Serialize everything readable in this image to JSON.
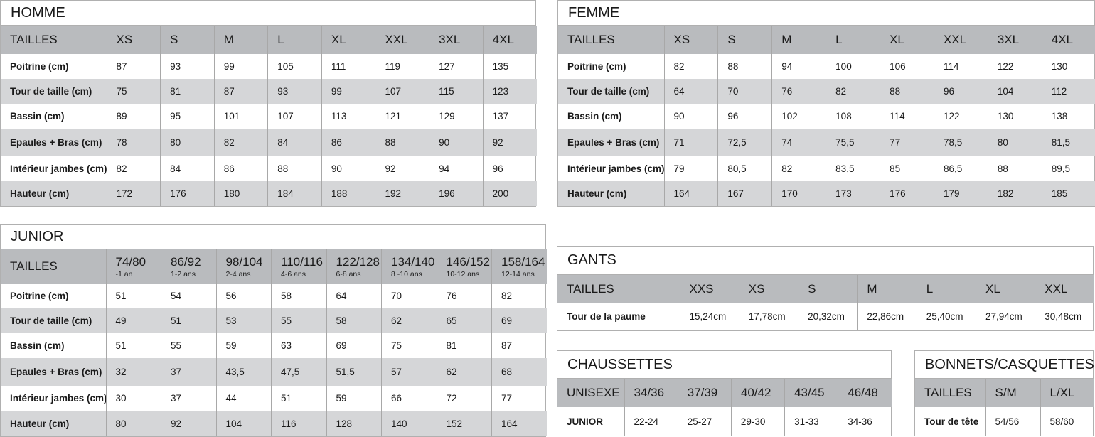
{
  "homme": {
    "title": "HOMME",
    "header": [
      "TAILLES",
      "XS",
      "S",
      "M",
      "L",
      "XL",
      "XXL",
      "3XL",
      "4XL"
    ],
    "rows": [
      [
        "Poitrine (cm)",
        "87",
        "93",
        "99",
        "105",
        "111",
        "119",
        "127",
        "135"
      ],
      [
        "Tour de taille (cm)",
        "75",
        "81",
        "87",
        "93",
        "99",
        "107",
        "115",
        "123"
      ],
      [
        "Bassin (cm)",
        "89",
        "95",
        "101",
        "107",
        "113",
        "121",
        "129",
        "137"
      ],
      [
        "Epaules + Bras (cm)",
        "78",
        "80",
        "82",
        "84",
        "86",
        "88",
        "90",
        "92"
      ],
      [
        "Intérieur jambes (cm)",
        "82",
        "84",
        "86",
        "88",
        "90",
        "92",
        "94",
        "96"
      ],
      [
        "Hauteur (cm)",
        "172",
        "176",
        "180",
        "184",
        "188",
        "192",
        "196",
        "200"
      ]
    ]
  },
  "femme": {
    "title": "FEMME",
    "header": [
      "TAILLES",
      "XS",
      "S",
      "M",
      "L",
      "XL",
      "XXL",
      "3XL",
      "4XL"
    ],
    "rows": [
      [
        "Poitrine (cm)",
        "82",
        "88",
        "94",
        "100",
        "106",
        "114",
        "122",
        "130"
      ],
      [
        "Tour de taille (cm)",
        "64",
        "70",
        "76",
        "82",
        "88",
        "96",
        "104",
        "112"
      ],
      [
        "Bassin (cm)",
        "90",
        "96",
        "102",
        "108",
        "114",
        "122",
        "130",
        "138"
      ],
      [
        "Epaules + Bras (cm)",
        "71",
        "72,5",
        "74",
        "75,5",
        "77",
        "78,5",
        "80",
        "81,5"
      ],
      [
        "Intérieur jambes (cm)",
        "79",
        "80,5",
        "82",
        "83,5",
        "85",
        "86,5",
        "88",
        "89,5"
      ],
      [
        "Hauteur (cm)",
        "164",
        "167",
        "170",
        "173",
        "176",
        "179",
        "182",
        "185"
      ]
    ]
  },
  "junior": {
    "title": "JUNIOR",
    "header": [
      "TAILLES",
      {
        "size": "74/80",
        "sub": "-1 an"
      },
      {
        "size": "86/92",
        "sub": "1-2 ans"
      },
      {
        "size": "98/104",
        "sub": "2-4 ans"
      },
      {
        "size": "110/116",
        "sub": "4-6 ans"
      },
      {
        "size": "122/128",
        "sub": "6-8 ans"
      },
      {
        "size": "134/140",
        "sub": "8 -10 ans"
      },
      {
        "size": "146/152",
        "sub": "10-12 ans"
      },
      {
        "size": "158/164",
        "sub": "12-14 ans"
      }
    ],
    "rows": [
      [
        "Poitrine (cm)",
        "51",
        "54",
        "56",
        "58",
        "64",
        "70",
        "76",
        "82"
      ],
      [
        "Tour de taille (cm)",
        "49",
        "51",
        "53",
        "55",
        "58",
        "62",
        "65",
        "69"
      ],
      [
        "Bassin (cm)",
        "51",
        "55",
        "59",
        "63",
        "69",
        "75",
        "81",
        "87"
      ],
      [
        "Epaules + Bras (cm)",
        "32",
        "37",
        "43,5",
        "47,5",
        "51,5",
        "57",
        "62",
        "68"
      ],
      [
        "Intérieur jambes (cm)",
        "30",
        "37",
        "44",
        "51",
        "59",
        "66",
        "72",
        "77"
      ],
      [
        "Hauteur (cm)",
        "80",
        "92",
        "104",
        "116",
        "128",
        "140",
        "152",
        "164"
      ]
    ]
  },
  "gants": {
    "title": "GANTS",
    "header": [
      "TAILLES",
      "XXS",
      "XS",
      "S",
      "M",
      "L",
      "XL",
      "XXL"
    ],
    "rows": [
      [
        "Tour de la paume",
        "15,24cm",
        "17,78cm",
        "20,32cm",
        "22,86cm",
        "25,40cm",
        "27,94cm",
        "30,48cm"
      ]
    ]
  },
  "chaussettes": {
    "title": "CHAUSSETTES",
    "header": [
      "UNISEXE",
      "34/36",
      "37/39",
      "40/42",
      "43/45",
      "46/48"
    ],
    "rows": [
      [
        "JUNIOR",
        "22-24",
        "25-27",
        "29-30",
        "31-33",
        "34-36"
      ]
    ]
  },
  "bonnets": {
    "title": "BONNETS/CASQUETTES",
    "header": [
      "TAILLES",
      "S/M",
      "L/XL"
    ],
    "rows": [
      [
        "Tour de tête",
        "54/56",
        "58/60"
      ]
    ]
  }
}
